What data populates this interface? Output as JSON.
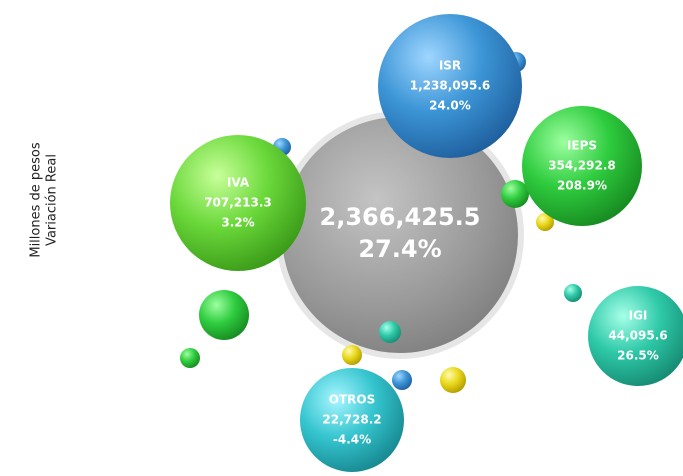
{
  "axis_label": [
    "Millones de pesos",
    "Variación Real"
  ],
  "center": {
    "value": "2,366,425.5",
    "change": "27.4%"
  },
  "nodes": [
    {
      "label": "ISR",
      "value": "1,238,095.6",
      "change": "24.0%"
    },
    {
      "label": "IVA",
      "value": "707,213.3",
      "change": "3.2%"
    },
    {
      "label": "IEPS",
      "value": "354,292.8",
      "change": "208.9%"
    },
    {
      "label": "IGI",
      "value": "44,095.6",
      "change": "26.5%"
    },
    {
      "label": "OTROS",
      "value": "22,728.2",
      "change": "-4.4%"
    }
  ]
}
